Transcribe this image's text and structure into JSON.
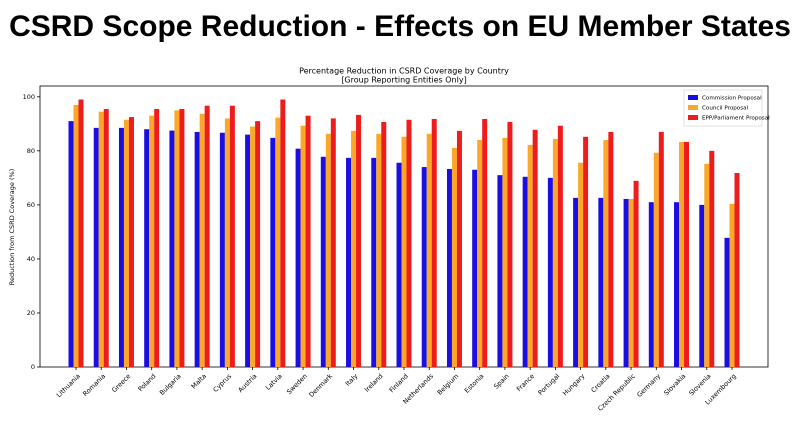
{
  "page_title": "CSRD Scope Reduction - Effects on EU Member States",
  "chart_data": {
    "type": "bar",
    "title": "Percentage Reduction in CSRD Coverage by Country",
    "subtitle": "[Group Reporting Entities Only]",
    "y_label": "Reduction from CSRD Coverage (%)",
    "categories": [
      "Lithuania",
      "Romania",
      "Greece",
      "Poland",
      "Bulgaria",
      "Malta",
      "Cyprus",
      "Austria",
      "Latvia",
      "Sweden",
      "Denmark",
      "Italy",
      "Ireland",
      "Finland",
      "Netherlands",
      "Belgium",
      "Estonia",
      "Spain",
      "France",
      "Portugal",
      "Hungary",
      "Croatia",
      "Czech Republic",
      "Germany",
      "Slovakia",
      "Slovenia",
      "Luxembourg"
    ],
    "series": [
      {
        "name": "Commission Proposal",
        "color": "#1a0ee0",
        "values": [
          91,
          88.5,
          88.5,
          88,
          87.5,
          87,
          86.7,
          86,
          84.8,
          80.8,
          77.8,
          77.4,
          77.4,
          75.6,
          74,
          73.3,
          73,
          71,
          70.4,
          70,
          62.6,
          62.6,
          62.2,
          61,
          61,
          60,
          47.8
        ]
      },
      {
        "name": "Council Proposal",
        "color": "#fba72a",
        "values": [
          97,
          94.5,
          91.5,
          93,
          95,
          93.7,
          92,
          89,
          92.3,
          89.3,
          86.3,
          87.4,
          86.3,
          85.2,
          86.3,
          81.1,
          84,
          84.8,
          82.2,
          84.4,
          75.6,
          84,
          62.2,
          79.3,
          83.3,
          75.2,
          60.4
        ]
      },
      {
        "name": "EPP/Parliament Proposal",
        "color": "#ee1d1d",
        "values": [
          99,
          95.5,
          92.5,
          95.5,
          95.5,
          96.7,
          96.7,
          91,
          99,
          93,
          92,
          93.3,
          90.7,
          91.5,
          91.8,
          87.4,
          91.8,
          90.7,
          87.8,
          89.3,
          85.2,
          87,
          68.9,
          87,
          83.3,
          80,
          71.8
        ]
      }
    ],
    "ylim": [
      0,
      104
    ],
    "yticks": [
      0,
      20,
      40,
      60,
      80,
      100
    ],
    "grid": false,
    "legend": "upper right"
  }
}
